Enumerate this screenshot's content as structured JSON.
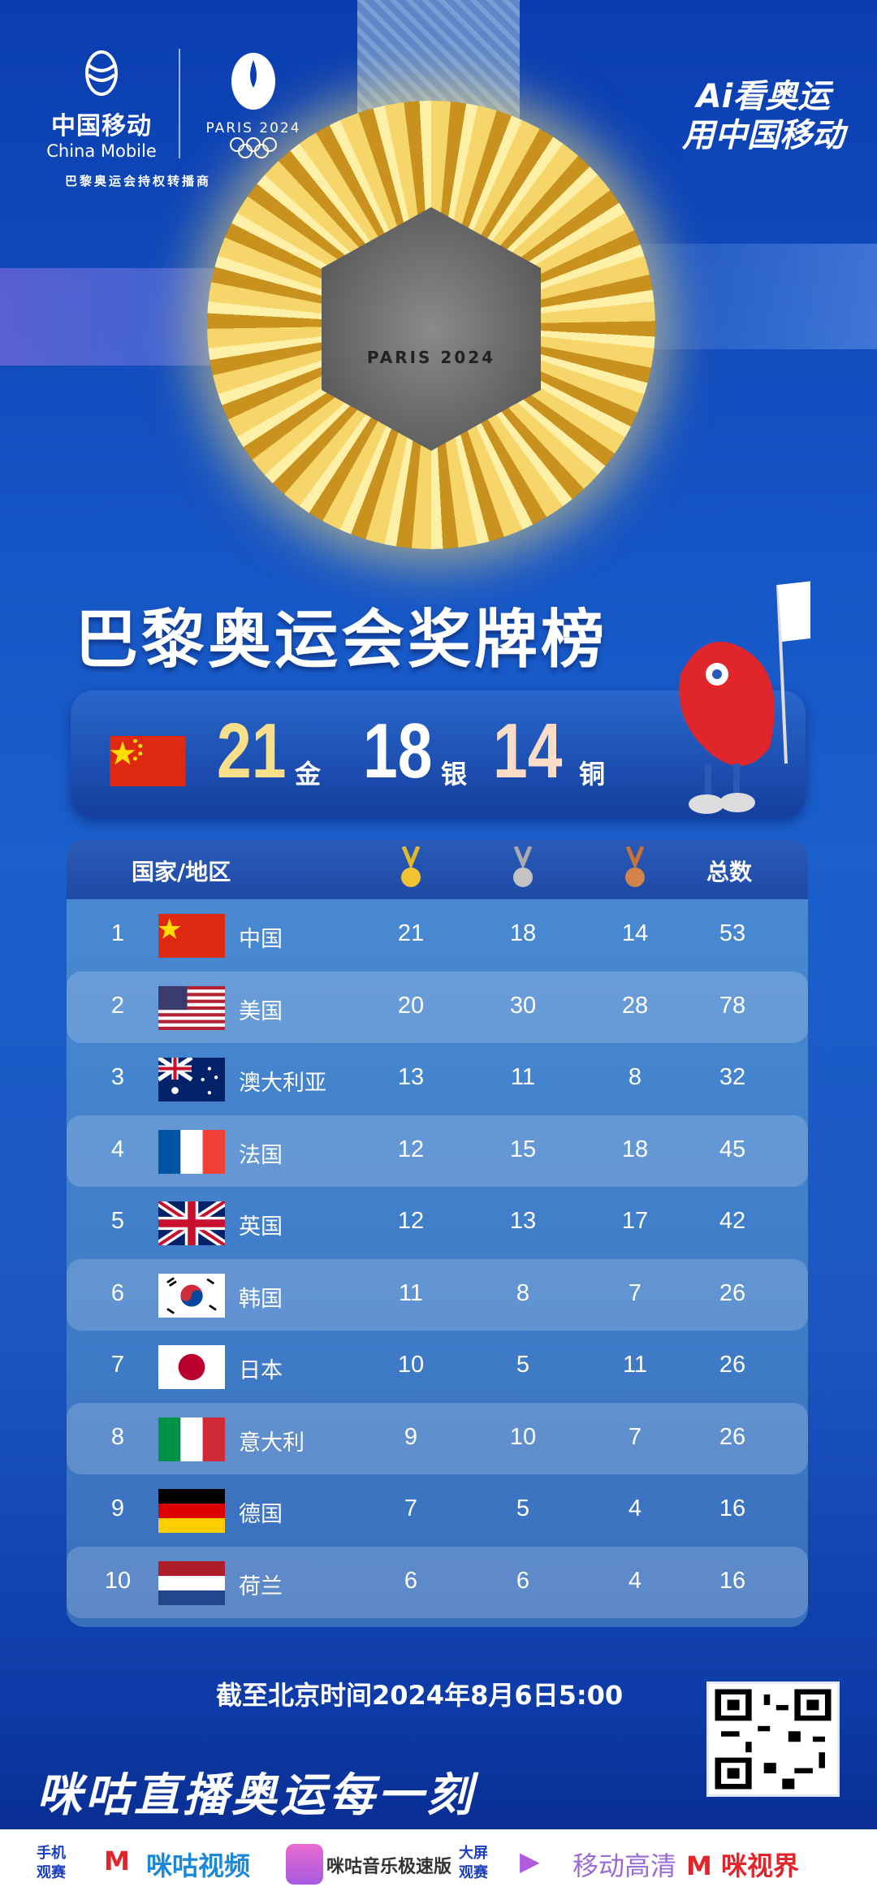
{
  "header": {
    "brand_name_cn": "中国移动",
    "brand_name_en": "China Mobile",
    "paris_logo_text": "PARIS 2024",
    "rights_holder": "巴黎奥运会持权转播商",
    "slogan_line1": "Ai看奥运",
    "slogan_line2": "用中国移动"
  },
  "title": "巴黎奥运会奖牌榜",
  "summary": {
    "country": "中国",
    "gold": "21",
    "gold_unit": "金",
    "silver": "18",
    "silver_unit": "银",
    "bronze": "14",
    "bronze_unit": "铜",
    "colors": {
      "gold": "#f8e08a",
      "silver": "#ffffff",
      "bronze": "#fbdcc6"
    }
  },
  "table": {
    "headers": {
      "country": "国家/地区",
      "gold_icon": "gold-medal",
      "silver_icon": "silver-medal",
      "bronze_icon": "bronze-medal",
      "total": "总数"
    },
    "rows": [
      {
        "rank": "1",
        "name": "中国",
        "flag": "china",
        "gold": "21",
        "silver": "18",
        "bronze": "14",
        "total": "53"
      },
      {
        "rank": "2",
        "name": "美国",
        "flag": "usa",
        "gold": "20",
        "silver": "30",
        "bronze": "28",
        "total": "78"
      },
      {
        "rank": "3",
        "name": "澳大利亚",
        "flag": "australia",
        "gold": "13",
        "silver": "11",
        "bronze": "8",
        "total": "32"
      },
      {
        "rank": "4",
        "name": "法国",
        "flag": "france",
        "gold": "12",
        "silver": "15",
        "bronze": "18",
        "total": "45"
      },
      {
        "rank": "5",
        "name": "英国",
        "flag": "uk",
        "gold": "12",
        "silver": "13",
        "bronze": "17",
        "total": "42"
      },
      {
        "rank": "6",
        "name": "韩国",
        "flag": "korea",
        "gold": "11",
        "silver": "8",
        "bronze": "7",
        "total": "26"
      },
      {
        "rank": "7",
        "name": "日本",
        "flag": "japan",
        "gold": "10",
        "silver": "5",
        "bronze": "11",
        "total": "26"
      },
      {
        "rank": "8",
        "name": "意大利",
        "flag": "italy",
        "gold": "9",
        "silver": "10",
        "bronze": "7",
        "total": "26"
      },
      {
        "rank": "9",
        "name": "德国",
        "flag": "germany",
        "gold": "7",
        "silver": "5",
        "bronze": "4",
        "total": "16"
      },
      {
        "rank": "10",
        "name": "荷兰",
        "flag": "netherlands",
        "gold": "6",
        "silver": "6",
        "bronze": "4",
        "total": "16"
      }
    ]
  },
  "as_of": "截至北京时间2024年8月6日5:00",
  "slogan": "咪咕直播奥运每一刻",
  "footer": {
    "mobile_label_1": "手机",
    "mobile_label_2": "观赛",
    "app1": "咪咕视频",
    "app2": "咪咕音乐极速版",
    "tv_label_1": "大屏",
    "tv_label_2": "观赛",
    "app3": "移动高清",
    "app4": "咪视界"
  }
}
